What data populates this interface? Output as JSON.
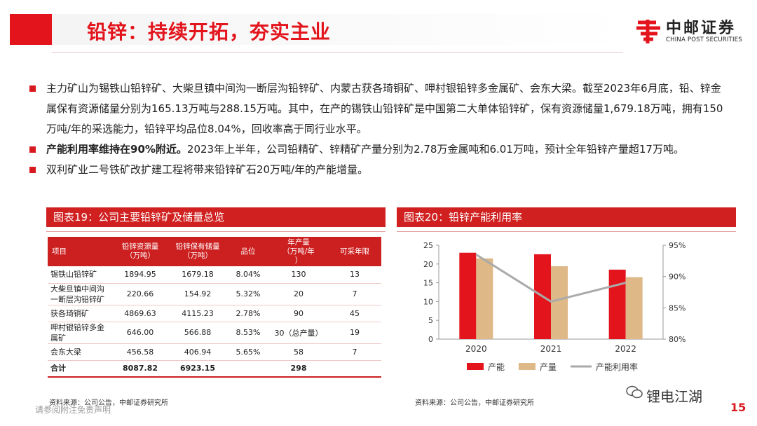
{
  "header": {
    "title": "铅锌：持续开拓，夯实主业",
    "logo_cn": "中邮证券",
    "logo_en": "CHINA POST SECURITIES"
  },
  "bullets": [
    {
      "bold": "",
      "text": "主力矿山为锡铁山铅锌矿、大柴旦镇中间沟一断层沟铅锌矿、内蒙古获各琦铜矿、呷村银铅锌多金属矿、会东大梁。截至2023年6月底，铅、锌金属保有资源储量分别为165.13万吨与288.15万吨。其中，在产的锡铁山铅锌矿是中国第二大单体铅锌矿，保有资源储量1,679.18万吨，拥有150万吨/年的采选能力，铅锌平均品位8.04%，回收率高于同行业水平。"
    },
    {
      "bold": "产能利用率维持在90%附近。",
      "text": "2023年上半年，公司铅精矿、锌精矿产量分别为2.78万金属吨和6.01万吨，预计全年铅锌产量超17万吨。"
    },
    {
      "bold": "",
      "text": "双利矿业二号铁矿改扩建工程将带来铅锌矿石20万吨/年的产能增量。"
    }
  ],
  "table19": {
    "title": "图表19：公司主要铅锌矿及储量总览",
    "headers": [
      "项目",
      "铅锌资源量\n（万吨）",
      "铅锌保有储量\n（万吨）",
      "品位",
      "年产量\n（万吨/年\n）",
      "可采年限"
    ],
    "rows": [
      [
        "锡铁山铅锌矿",
        "1894.95",
        "1679.18",
        "8.04%",
        "130",
        "13"
      ],
      [
        "大柴旦镇中间沟一断层沟铅锌矿",
        "220.66",
        "154.92",
        "5.32%",
        "20",
        "7"
      ],
      [
        "获各琦铜矿",
        "4869.63",
        "4115.23",
        "2.78%",
        "90",
        "45"
      ],
      [
        "呷村银铅锌多金属矿",
        "646.00",
        "566.88",
        "8.53%",
        "30（总产量）",
        "19"
      ],
      [
        "会东大梁",
        "456.58",
        "406.94",
        "5.65%",
        "58",
        "7"
      ]
    ],
    "total": [
      "合计",
      "8087.82",
      "6923.15",
      "",
      "298",
      ""
    ],
    "source": "资料来源：公司公告，中邮证券研究所"
  },
  "chart20": {
    "title": "图表20：铅锌产能利用率",
    "source": "资料来源：公司公告，中邮证券研究所"
  },
  "chart_data": {
    "type": "bar",
    "categories": [
      "2020",
      "2021",
      "2022"
    ],
    "series": [
      {
        "name": "产能",
        "kind": "bar",
        "axis": "left",
        "color": "#e3141c",
        "values": [
          23,
          22.6,
          18.5
        ]
      },
      {
        "name": "产量",
        "kind": "bar",
        "axis": "left",
        "color": "#deb887",
        "values": [
          21.5,
          19.4,
          16.5
        ]
      },
      {
        "name": "产能利用率",
        "kind": "line",
        "axis": "right",
        "color": "#aaaaaa",
        "values": [
          93.5,
          86,
          89
        ]
      }
    ],
    "ylim": [
      0,
      25
    ],
    "yticks": [
      "0",
      "5",
      "10",
      "15",
      "20",
      "25"
    ],
    "y2lim": [
      80,
      95
    ],
    "y2ticks": [
      "80%",
      "85%",
      "90%",
      "95%"
    ],
    "legend_position": "bottom"
  },
  "footer": {
    "disclaimer": "请参阅附注免责声明",
    "watermark": "锂电江湖",
    "page": "15"
  }
}
